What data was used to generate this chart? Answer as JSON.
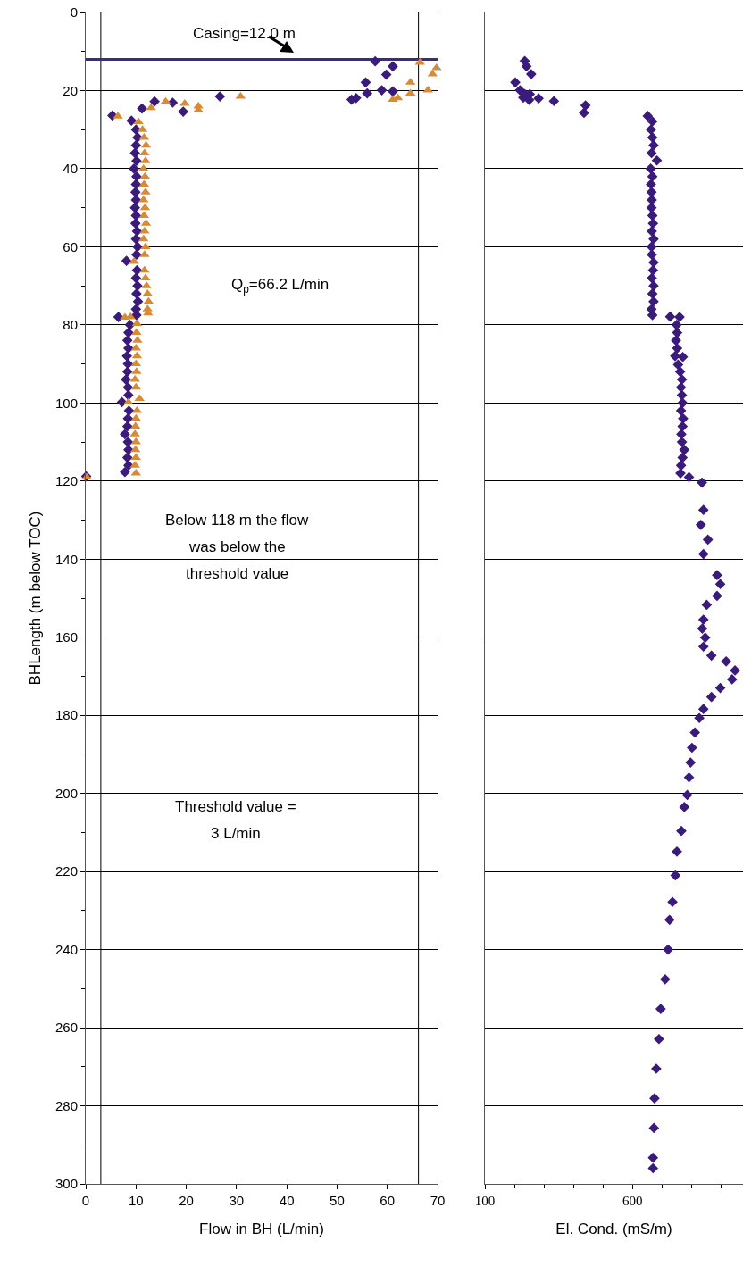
{
  "chart_data": [
    {
      "type": "scatter",
      "xlabel": "Flow in BH (L/min)",
      "ylabel": "BHLength (m below TOC)",
      "xlim": [
        0,
        70
      ],
      "xticks": [
        0,
        10,
        20,
        30,
        40,
        50,
        60,
        70
      ],
      "ylim": [
        300,
        0
      ],
      "yticks": [
        0,
        {
          "value": 10,
          "label": null
        },
        20,
        {
          "value": 30,
          "label": null
        },
        40,
        {
          "value": 50,
          "label": null
        },
        60,
        {
          "value": 70,
          "label": null
        },
        80,
        {
          "value": 90,
          "label": null
        },
        100,
        {
          "value": 110,
          "label": null
        },
        120,
        {
          "value": 130,
          "label": null
        },
        140,
        {
          "value": 150,
          "label": null
        },
        160,
        {
          "value": 170,
          "label": null
        },
        180,
        {
          "value": 190,
          "label": null
        },
        200,
        {
          "value": 210,
          "label": null
        },
        220,
        {
          "value": 230,
          "label": null
        },
        240,
        {
          "value": 250,
          "label": null
        },
        260,
        {
          "value": 270,
          "label": null
        },
        280,
        {
          "value": 290,
          "label": null
        },
        300
      ],
      "grid": "y",
      "series": [
        {
          "color": "#3a1a7a",
          "marker": "diamond",
          "x": [
            57.6,
            61.1,
            59.8,
            55.7,
            58.9,
            61.1,
            56.0,
            53.8,
            52.9,
            26.7,
            13.7,
            17.3,
            11.2,
            19.4,
            5.3,
            9.1,
            10.0,
            10.3,
            10.0,
            9.8,
            10.1,
            9.6,
            10.1,
            10.0,
            9.9,
            10.0,
            9.8,
            10.0,
            9.9,
            10.2,
            10.0,
            10.3,
            10.1,
            8.1,
            10.2,
            10.0,
            10.3,
            10.1,
            10.4,
            10.0,
            10.1,
            6.5,
            8.8,
            8.5,
            8.3,
            8.5,
            8.2,
            8.4,
            8.3,
            8.0,
            8.4,
            8.5,
            7.2,
            8.6,
            8.4,
            8.3,
            7.8,
            8.4,
            8.5,
            8.3,
            8.5,
            7.8,
            0.1
          ],
          "values": [
            12.5,
            13.8,
            15.9,
            17.9,
            19.9,
            20.2,
            20.7,
            21.9,
            22.3,
            21.5,
            22.8,
            23.1,
            24.6,
            25.4,
            26.4,
            27.7,
            30,
            32,
            34,
            36,
            38,
            40,
            42,
            44,
            46,
            48,
            50,
            52,
            54,
            56,
            58,
            60,
            62,
            63.6,
            66,
            68,
            70,
            72,
            74,
            76,
            77.5,
            78,
            80,
            82,
            84,
            86,
            88,
            90,
            92,
            94,
            96,
            98,
            99.8,
            102,
            104,
            106,
            108,
            110,
            112,
            114,
            116,
            117.7,
            118.8
          ]
        },
        {
          "color": "#d98a35",
          "marker": "triangle",
          "x": [
            66.5,
            69.8,
            69.0,
            64.6,
            68.1,
            64.6,
            62.1,
            61.1,
            30.8,
            15.9,
            19.7,
            22.4,
            22.4,
            13.0,
            6.4,
            10.5,
            11.3,
            11.6,
            12.0,
            11.7,
            11.9,
            11.5,
            11.8,
            11.6,
            11.9,
            11.5,
            11.8,
            11.6,
            12.0,
            11.7,
            11.5,
            11.9,
            11.7,
            9.6,
            11.7,
            11.9,
            12.1,
            12.3,
            12.5,
            12.3,
            12.4,
            7.8,
            8.9,
            10.2,
            10.1,
            10.3,
            10.0,
            10.2,
            10.0,
            10.1,
            9.8,
            10.0,
            10.7,
            8.5,
            10.2,
            10.0,
            9.9,
            9.8,
            10.0,
            9.9,
            10.0,
            9.8,
            10.0,
            0.2
          ],
          "values": [
            12.8,
            14.2,
            15.8,
            17.9,
            19.9,
            20.7,
            21.9,
            22.3,
            21.5,
            22.8,
            23.3,
            24.0,
            25.0,
            24.4,
            26.6,
            28,
            30,
            32,
            34,
            36,
            38,
            40,
            42,
            44,
            46,
            48,
            50,
            52,
            54,
            56,
            58,
            60,
            62,
            63.8,
            66,
            68,
            70,
            72,
            74,
            76,
            77,
            78.1,
            78,
            79.7,
            82,
            84,
            86,
            88,
            90,
            92,
            94,
            96,
            98.9,
            99.8,
            102,
            104,
            106,
            108,
            110,
            112,
            114,
            116,
            118,
            119
          ]
        }
      ],
      "ref_lines": [
        {
          "axis": "x",
          "value": 3,
          "color": "#000000",
          "line_style": "solid"
        },
        {
          "axis": "x",
          "value": 66.2,
          "color": "#000000",
          "line_style": "solid"
        },
        {
          "axis": "y",
          "value": 12,
          "label": "Casing=12.0 m",
          "color": "#3b2a8a",
          "line_style": "solid"
        }
      ],
      "annotations": [
        "Q$_{p}$=66.2 L/min",
        "Below 118 m the flow\nwas below the\nthreshold value",
        "Threshold value =\n3 L/min"
      ]
    },
    {
      "type": "scatter",
      "xlabel": "El. Cond. (mS/m)",
      "xlim": [
        100,
        975
      ],
      "xticks": [
        100,
        {
          "value": 200,
          "label": null
        },
        {
          "value": 300,
          "label": null
        },
        {
          "value": 400,
          "label": null
        },
        {
          "value": 500,
          "label": null
        },
        600,
        {
          "value": 700,
          "label": null
        },
        {
          "value": 800,
          "label": null
        },
        {
          "value": 900,
          "label": null
        }
      ],
      "ylim": [
        300,
        0
      ],
      "yticks": [
        0,
        20,
        40,
        60,
        80,
        100,
        120,
        140,
        160,
        180,
        200,
        220,
        240,
        260,
        280,
        300
      ],
      "grid": "y",
      "tick_labels": "x",
      "series": [
        {
          "color": "#3a1a7a",
          "marker": "diamond",
          "x": [
            235,
            241,
            257,
            203,
            219,
            235,
            252,
            230,
            282,
            250,
            334,
            441,
            436,
            652,
            668,
            663,
            668,
            672,
            665,
            683,
            662,
            668,
            663,
            665,
            666,
            665,
            668,
            670,
            666,
            672,
            665,
            666,
            672,
            670,
            666,
            672,
            668,
            672,
            665,
            668,
            728,
            760,
            750,
            752,
            748,
            752,
            745,
            771,
            755,
            762,
            768,
            765,
            768,
            770,
            765,
            772,
            770,
            766,
            768,
            776,
            770,
            765,
            763,
            792,
            836,
            841,
            832,
            856,
            841,
            887,
            898,
            887,
            852,
            841,
            837,
            847,
            841,
            868,
            918,
            948,
            938,
            898,
            868,
            841,
            827,
            812,
            802,
            797,
            792,
            786,
            776,
            766,
            751,
            746,
            736,
            726,
            721,
            711,
            696,
            690,
            681,
            675,
            673,
            670,
            670
          ],
          "values": [
            12.4,
            13.8,
            15.8,
            17.9,
            19.9,
            20.9,
            20.9,
            21.8,
            22.0,
            22.4,
            22.7,
            23.8,
            25.7,
            26.5,
            27.9,
            30,
            32,
            34,
            36,
            37.9,
            40,
            42,
            44,
            46,
            48,
            50,
            52,
            54,
            56,
            58,
            60,
            62,
            64,
            66,
            68,
            70,
            72,
            74,
            76,
            77.5,
            77.9,
            78,
            80,
            82,
            84,
            86,
            88,
            88.2,
            90.2,
            92,
            94,
            96,
            98,
            100,
            102,
            104,
            106,
            108,
            110,
            112,
            114,
            116,
            118,
            119,
            120.4,
            127.4,
            131.2,
            135,
            138.7,
            144.1,
            146.4,
            149.4,
            151.7,
            155.5,
            157.8,
            160.1,
            162.4,
            164.7,
            166.2,
            168.5,
            170.8,
            173,
            175.3,
            178.4,
            180.7,
            184.4,
            188.3,
            192.1,
            195.9,
            200.4,
            203.5,
            209.6,
            214.9,
            221,
            227.8,
            232.4,
            240,
            247.6,
            255.2,
            262.9,
            270.5,
            278.1,
            285.7,
            293.3,
            296
          ]
        }
      ]
    }
  ]
}
